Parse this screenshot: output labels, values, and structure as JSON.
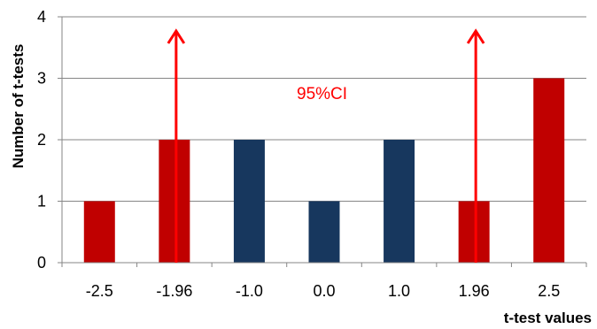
{
  "chart_data": {
    "type": "bar",
    "categories": [
      "-2.5",
      "-1.96",
      "-1.0",
      "0.0",
      "1.0",
      "1.96",
      "2.5"
    ],
    "values": [
      1,
      2,
      2,
      1,
      2,
      1,
      3
    ],
    "bar_colors": [
      "#C00000",
      "#C00000",
      "#17375E",
      "#17375E",
      "#17375E",
      "#C00000",
      "#C00000"
    ],
    "xlabel": "t-test values",
    "ylabel": "Number of t-tests",
    "ylim": [
      0,
      4
    ],
    "yticks": [
      0,
      1,
      2,
      3,
      4
    ],
    "grid": true,
    "annotations": [
      {
        "type": "arrow",
        "at_category": "-1.96",
        "color": "#FF0000"
      },
      {
        "type": "arrow",
        "at_category": "1.96",
        "color": "#FF0000"
      },
      {
        "type": "text",
        "text": "95%CI",
        "color": "#FF0000"
      }
    ]
  }
}
